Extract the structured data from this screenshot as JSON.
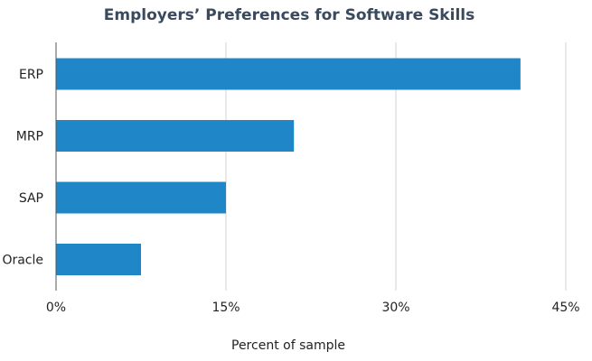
{
  "chart_data": {
    "type": "bar",
    "orientation": "horizontal",
    "title": "Employers’ Preferences for Software Skills",
    "xlabel": "Percent of sample",
    "ylabel": "",
    "categories": [
      "ERP",
      "MRP",
      "SAP",
      "Oracle"
    ],
    "values": [
      41,
      21,
      15,
      7.5
    ],
    "xlim": [
      0,
      45
    ],
    "xticks": [
      0,
      15,
      30,
      45
    ],
    "xtick_labels": [
      "0%",
      "15%",
      "30%",
      "45%"
    ],
    "grid": true,
    "legend": "none",
    "bar_color": "#1f87c8",
    "grid_color": "#d3d3d3",
    "title_color": "#3a4a5e"
  }
}
